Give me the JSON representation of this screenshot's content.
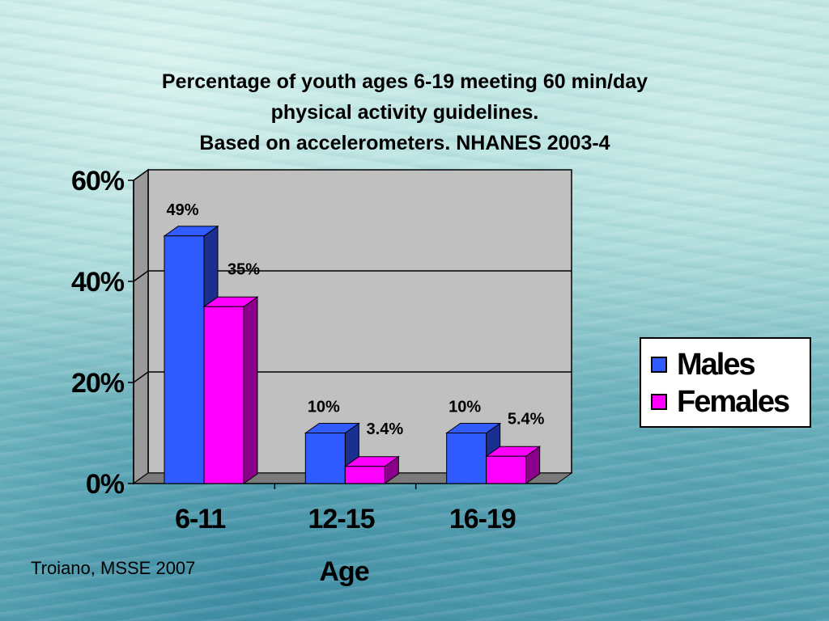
{
  "title_lines": [
    "Percentage of youth ages 6-19 meeting 60 min/day",
    "physical activity guidelines.",
    "Based on accelerometers.  NHANES 2003-4"
  ],
  "source": "Troiano, MSSE 2007",
  "colors": {
    "males": "#2f5bff",
    "males_side": "#1a2f8f",
    "females": "#ff00ff",
    "females_side": "#8a008a",
    "plot_bg": "#c0c0c0",
    "floor": "#7a7a7a"
  },
  "chart_data": {
    "type": "bar",
    "title": "Percentage of youth ages 6-19 meeting 60 min/day physical activity guidelines. Based on accelerometers.  NHANES 2003-4",
    "categories": [
      "6-11",
      "12-15",
      "16-19"
    ],
    "xlabel": "Age",
    "ylabel": "",
    "ylim": [
      0,
      60
    ],
    "yticks": [
      0,
      20,
      40,
      60
    ],
    "ytick_labels": [
      "0%",
      "20%",
      "40%",
      "60%"
    ],
    "grid": true,
    "legend_position": "right",
    "series": [
      {
        "name": "Males",
        "values": [
          49,
          10,
          10
        ],
        "labels": [
          "49%",
          "10%",
          "10%"
        ]
      },
      {
        "name": "Females",
        "values": [
          35,
          3.4,
          5.4
        ],
        "labels": [
          "35%",
          "3.4%",
          "5.4%"
        ]
      }
    ]
  }
}
